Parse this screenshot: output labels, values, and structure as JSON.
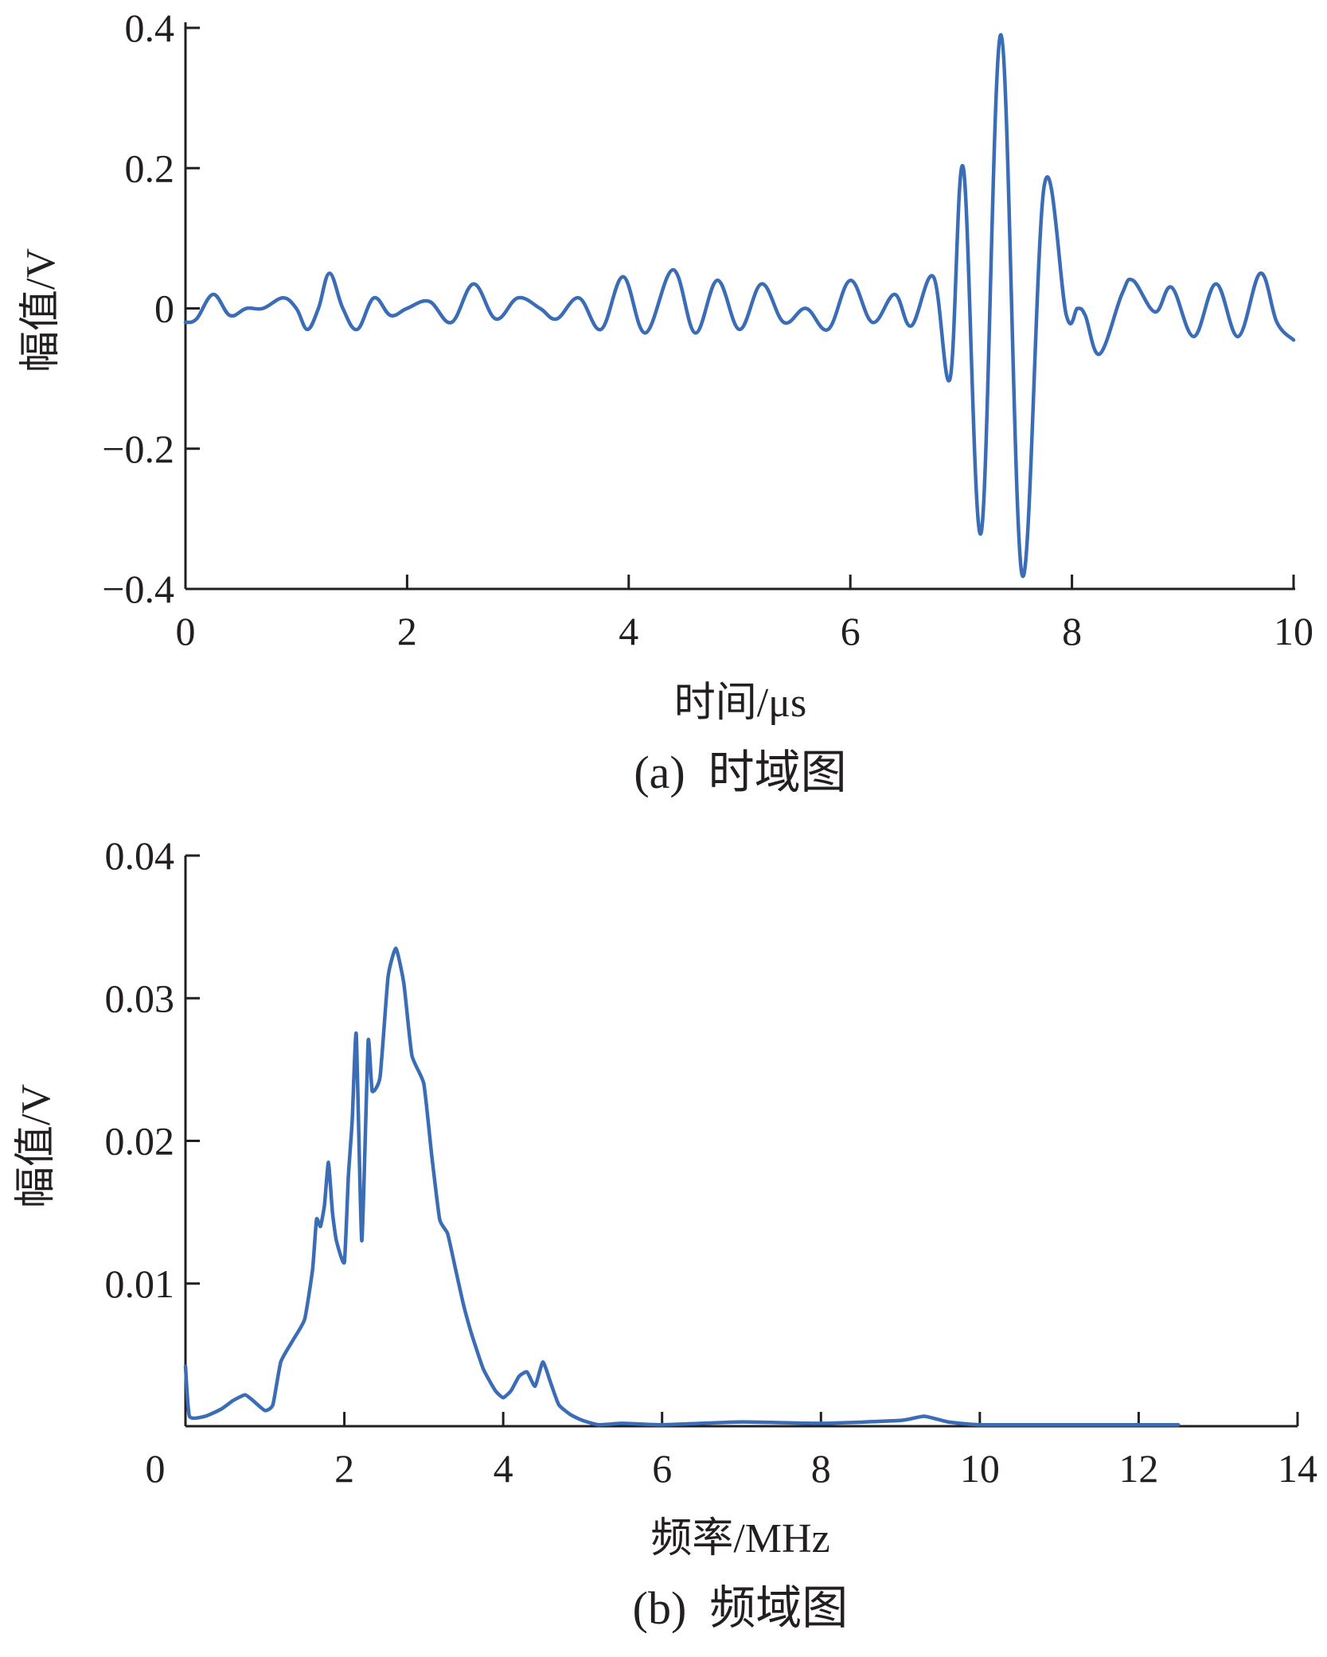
{
  "colors": {
    "series": "#3a6db5",
    "axis": "#231f20"
  },
  "chart_data": [
    {
      "type": "line",
      "caption": "(a)  时域图",
      "xlabel": "时间/μs",
      "ylabel": "幅值/V",
      "xlim": [
        0,
        10
      ],
      "ylim": [
        -0.4,
        0.4
      ],
      "xticks": [
        "0",
        "2",
        "4",
        "6",
        "8",
        "10"
      ],
      "yticks": [
        "−0.4",
        "−0.2",
        "0",
        "0.2",
        "0.4"
      ],
      "series": [
        {
          "x": [
            0,
            0.1,
            0.25,
            0.4,
            0.55,
            0.7,
            0.88,
            1.0,
            1.1,
            1.2,
            1.3,
            1.42,
            1.55,
            1.7,
            1.85,
            2.0,
            2.2,
            2.4,
            2.6,
            2.8,
            3.0,
            3.2,
            3.35,
            3.55,
            3.75,
            3.95,
            4.15,
            4.4,
            4.6,
            4.8,
            5.0,
            5.2,
            5.4,
            5.6,
            5.8,
            6.0,
            6.2,
            6.4,
            6.55,
            6.75,
            6.9,
            7.02,
            7.18,
            7.36,
            7.55,
            7.75,
            7.95,
            8.05,
            8.12,
            8.25,
            8.45,
            8.55,
            8.75,
            8.9,
            9.1,
            9.3,
            9.5,
            9.7,
            9.85,
            10.0
          ],
          "y": [
            -0.02,
            -0.015,
            0.02,
            -0.01,
            0.0,
            0.0,
            0.015,
            0.0,
            -0.03,
            0.0,
            0.05,
            0.0,
            -0.03,
            0.015,
            -0.01,
            0.0,
            0.01,
            -0.02,
            0.035,
            -0.015,
            0.015,
            0.0,
            -0.015,
            0.015,
            -0.03,
            0.045,
            -0.035,
            0.055,
            -0.035,
            0.04,
            -0.03,
            0.035,
            -0.02,
            0.0,
            -0.03,
            0.04,
            -0.02,
            0.02,
            -0.025,
            0.045,
            -0.1,
            0.2,
            -0.32,
            0.39,
            -0.38,
            0.175,
            -0.01,
            0.0,
            -0.01,
            -0.065,
            0.02,
            0.04,
            -0.005,
            0.03,
            -0.04,
            0.035,
            -0.04,
            0.05,
            -0.02,
            -0.045
          ]
        }
      ]
    },
    {
      "type": "line",
      "caption": "(b)  频域图",
      "xlabel": "频率/MHz",
      "ylabel": "幅值/V",
      "xlim": [
        0,
        14
      ],
      "ylim": [
        0,
        0.04
      ],
      "xticks": [
        "0",
        "2",
        "4",
        "6",
        "8",
        "10",
        "12",
        "14"
      ],
      "yticks": [
        "0.01",
        "0.02",
        "0.03",
        "0.04"
      ],
      "series": [
        {
          "x": [
            0.0,
            0.05,
            0.25,
            0.45,
            0.6,
            0.75,
            0.85,
            1.0,
            1.1,
            1.2,
            1.35,
            1.5,
            1.6,
            1.65,
            1.7,
            1.75,
            1.8,
            1.85,
            1.9,
            2.0,
            2.05,
            2.1,
            2.15,
            2.22,
            2.3,
            2.35,
            2.45,
            2.55,
            2.65,
            2.75,
            2.85,
            3.0,
            3.1,
            3.2,
            3.3,
            3.4,
            3.5,
            3.6,
            3.75,
            3.9,
            4.0,
            4.1,
            4.2,
            4.3,
            4.4,
            4.5,
            4.6,
            4.7,
            4.85,
            5.0,
            5.2,
            5.5,
            6.0,
            7.0,
            8.0,
            9.0,
            9.3,
            9.6,
            10.0,
            11.0,
            12.0,
            12.5
          ],
          "y": [
            0.0042,
            0.0007,
            0.0007,
            0.0012,
            0.0018,
            0.0022,
            0.0018,
            0.0011,
            0.0015,
            0.0045,
            0.006,
            0.0075,
            0.011,
            0.0145,
            0.014,
            0.0155,
            0.0185,
            0.015,
            0.013,
            0.0115,
            0.0175,
            0.0215,
            0.0275,
            0.013,
            0.027,
            0.0235,
            0.0245,
            0.0315,
            0.0335,
            0.031,
            0.026,
            0.024,
            0.019,
            0.0145,
            0.0135,
            0.011,
            0.0085,
            0.0065,
            0.004,
            0.0025,
            0.002,
            0.0025,
            0.0035,
            0.0038,
            0.0028,
            0.0045,
            0.003,
            0.0015,
            0.0008,
            0.0004,
            0.0001,
            0.0002,
            0.0001,
            0.0003,
            0.0002,
            0.0004,
            0.0007,
            0.0003,
            0.0001,
            0.0001,
            0.0001,
            0.0001
          ]
        }
      ]
    }
  ]
}
